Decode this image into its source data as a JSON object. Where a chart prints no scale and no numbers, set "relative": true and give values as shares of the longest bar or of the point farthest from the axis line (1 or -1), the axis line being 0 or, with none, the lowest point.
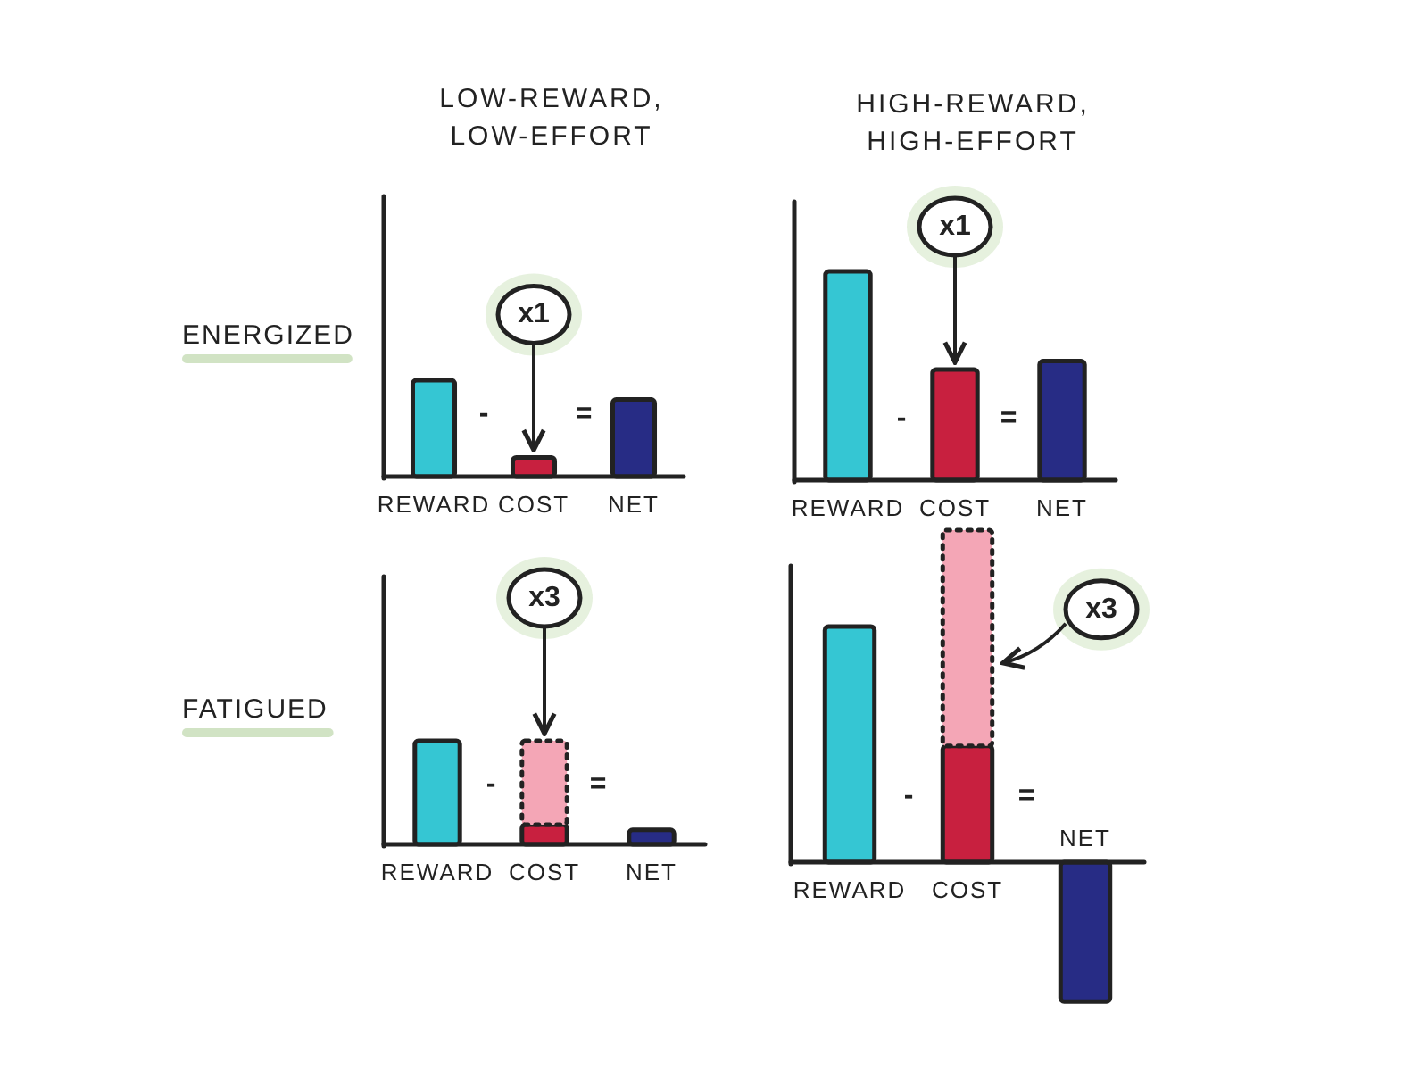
{
  "chart_data": [
    {
      "type": "bar",
      "title": "LOW-REWARD, LOW-EFFORT",
      "ylabel": "ENERGIZED",
      "categories": [
        "REWARD",
        "COST",
        "NET"
      ],
      "relative": true,
      "series": [
        {
          "colors": [
            "#35c6d3",
            "#c8203f",
            "#272c85"
          ],
          "values": [
            1,
            0.2,
            0.8
          ]
        }
      ],
      "annotations": [
        "-",
        "=",
        "x1"
      ]
    },
    {
      "type": "bar",
      "title": "HIGH-REWARD, HIGH-EFFORT",
      "categories": [
        "REWARD",
        "COST",
        "NET"
      ],
      "relative": true,
      "series": [
        {
          "colors": [
            "#35c6d3",
            "#c8203f",
            "#272c85"
          ],
          "values": [
            1,
            0.53,
            0.57
          ]
        }
      ],
      "annotations": [
        "-",
        "=",
        "x1"
      ]
    },
    {
      "type": "bar",
      "ylabel": "FATIGUED",
      "categories": [
        "REWARD",
        "COST",
        "NET"
      ],
      "relative": true,
      "stacked": true,
      "series": [
        {
          "colors": [
            "#35c6d3",
            "#c8203f",
            "#272c85"
          ],
          "values": [
            1,
            0.19,
            0.14
          ]
        },
        {
          "color": "#f4a6b6",
          "line_style": "dotted",
          "values": [
            null,
            0.81,
            null
          ]
        }
      ],
      "annotations": [
        "-",
        "=",
        "x3"
      ]
    },
    {
      "type": "bar",
      "categories": [
        "REWARD",
        "COST",
        "NET"
      ],
      "relative": true,
      "stacked": true,
      "series": [
        {
          "colors": [
            "#35c6d3",
            "#c8203f",
            "#272c85"
          ],
          "values": [
            0.71,
            0.35,
            -0.42
          ]
        },
        {
          "color": "#f4a6b6",
          "line_style": "dotted",
          "values": [
            null,
            0.65,
            null
          ]
        }
      ],
      "annotations": [
        "-",
        "=",
        "x3"
      ]
    }
  ]
}
